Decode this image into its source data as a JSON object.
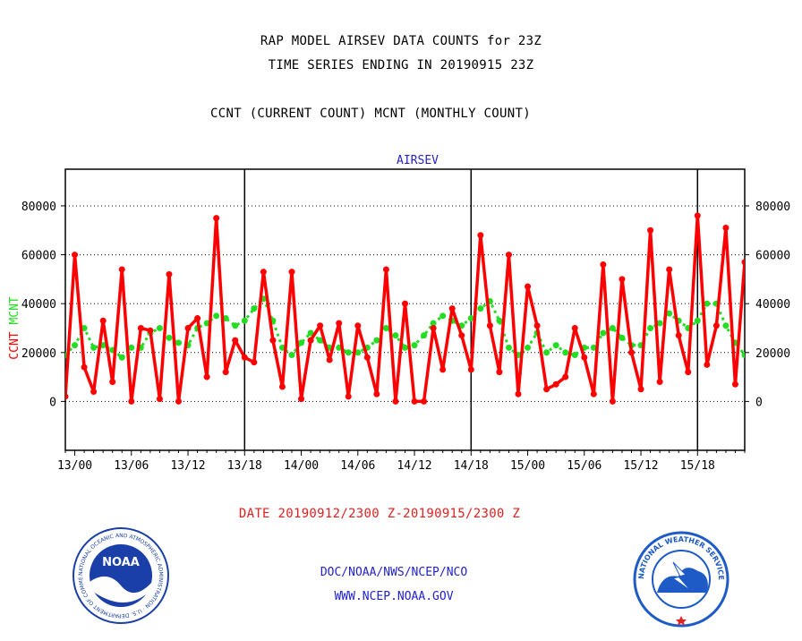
{
  "header": {
    "line1": "RAP MODEL AIRSEV DATA COUNTS for 23Z",
    "line2": "TIME SERIES ENDING IN 20190915 23Z",
    "line3": "CCNT (CURRENT COUNT) MCNT (MONTHLY COUNT)"
  },
  "footer": {
    "date_range": "DATE 20190912/2300 Z-20190915/2300 Z",
    "org": "DOC/NOAA/NWS/NCEP/NCO",
    "url": "WWW.NCEP.NOAA.GOV"
  },
  "logos": {
    "noaa_label": "NOAA",
    "noaa_ring": "NATIONAL OCEANIC AND ATMOSPHERIC ADMINISTRATION · U.S. DEPARTMENT OF COMMERCE ·",
    "nws_ring": "NATIONAL WEATHER SERVICE"
  },
  "colors": {
    "ccnt": "#ff0000",
    "mcnt": "#22dd22",
    "title_blue": "#2222cc",
    "footer_red": "#dd2222",
    "noaa_blue": "#1a3fa8",
    "nws_blue": "#1e5bc6"
  },
  "chart_data": {
    "type": "line",
    "title": "AIRSEV",
    "ylabel_left": [
      "CCNT",
      "MCNT"
    ],
    "ylim": [
      -20000,
      95000
    ],
    "yticks": [
      0,
      20000,
      40000,
      60000,
      80000
    ],
    "ytick_labels": [
      "0",
      "20000",
      "40000",
      "60000",
      "80000"
    ],
    "xlim": [
      -1,
      71
    ],
    "xticks": [
      0,
      6,
      12,
      18,
      24,
      30,
      36,
      42,
      48,
      54,
      60,
      66
    ],
    "xtick_labels": [
      "13/00",
      "13/06",
      "13/12",
      "13/18",
      "14/00",
      "14/06",
      "14/12",
      "14/18",
      "15/00",
      "15/06",
      "15/12",
      "15/18"
    ],
    "day_lines": [
      18,
      42,
      66
    ],
    "grid": "horizontal dotted",
    "series": [
      {
        "name": "CCNT",
        "x_start": -1,
        "values": [
          2000,
          60000,
          14000,
          4000,
          33000,
          8000,
          54000,
          0,
          30000,
          29000,
          1000,
          52000,
          0,
          30000,
          34000,
          10000,
          75000,
          12000,
          25000,
          18000,
          16000,
          53000,
          25000,
          6000,
          53000,
          1000,
          25000,
          31000,
          17000,
          32000,
          2000,
          31000,
          18000,
          3000,
          54000,
          0,
          40000,
          0,
          0,
          30000,
          13000,
          38000,
          27000,
          13000,
          68000,
          31000,
          12000,
          60000,
          3000,
          47000,
          31000,
          5000,
          7000,
          10000,
          30000,
          18000,
          3000,
          56000,
          0,
          50000,
          20000,
          5000,
          70000,
          8000,
          54000,
          27000,
          12000,
          76000,
          15000,
          31000,
          71000,
          7000,
          57000
        ]
      },
      {
        "name": "MCNT",
        "x_start": -1,
        "values": [
          19000,
          23000,
          30000,
          22000,
          23000,
          21000,
          18000,
          22000,
          22000,
          28000,
          30000,
          26000,
          24000,
          23000,
          30000,
          32000,
          35000,
          34000,
          31000,
          33000,
          38000,
          42000,
          33000,
          22000,
          19000,
          24000,
          28000,
          25000,
          22000,
          22000,
          20000,
          20000,
          22000,
          25000,
          30000,
          27000,
          22000,
          23000,
          27000,
          32000,
          35000,
          33000,
          31000,
          34000,
          38000,
          41000,
          33000,
          22000,
          19000,
          22000,
          28000,
          20000,
          23000,
          20000,
          19000,
          22000,
          22000,
          28000,
          30000,
          26000,
          23000,
          23000,
          30000,
          32000,
          36000,
          33000,
          30000,
          33000,
          40000,
          40000,
          31000,
          24000,
          19000
        ]
      }
    ]
  }
}
